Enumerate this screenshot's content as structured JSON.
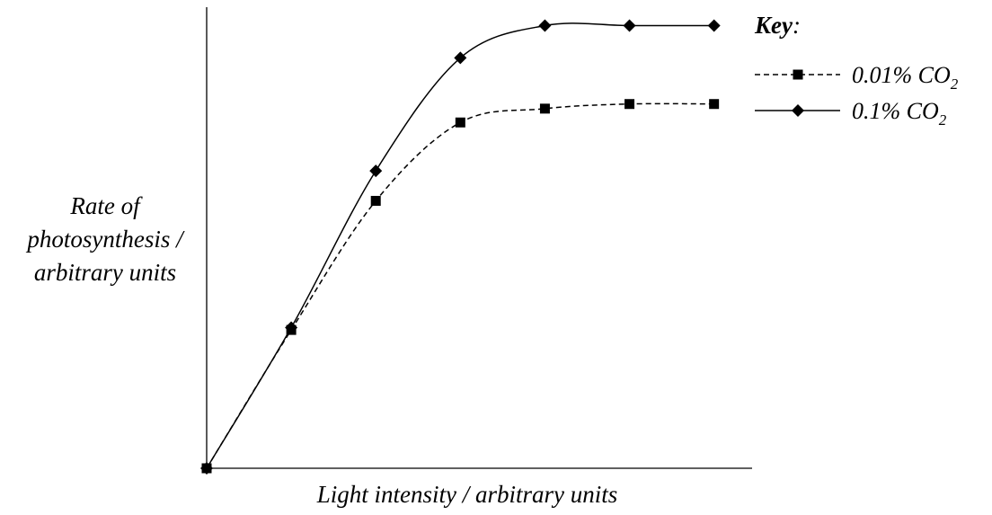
{
  "chart_data": {
    "type": "line",
    "title": "",
    "xlabel": "Light intensity / arbitrary units",
    "ylabel": [
      "Rate of",
      "photosynthesis /",
      "arbitrary units"
    ],
    "x": [
      0,
      1,
      2,
      3,
      4,
      5,
      6
    ],
    "xlim": [
      0,
      6.45
    ],
    "ylim": [
      0,
      10
    ],
    "grid": false,
    "legend": {
      "title": "Key",
      "title_suffix": ":",
      "position": "top-right"
    },
    "series": [
      {
        "name": "0.01% CO",
        "name_subscript": "2",
        "line_style": "dashed",
        "marker": "square",
        "color": "#000000",
        "values": [
          0,
          3.0,
          5.8,
          7.5,
          7.8,
          7.9,
          7.9
        ]
      },
      {
        "name": "0.1% CO",
        "name_subscript": "2",
        "line_style": "solid",
        "marker": "diamond",
        "color": "#000000",
        "values": [
          0,
          3.05,
          6.45,
          8.9,
          9.6,
          9.6,
          9.6
        ]
      }
    ]
  }
}
